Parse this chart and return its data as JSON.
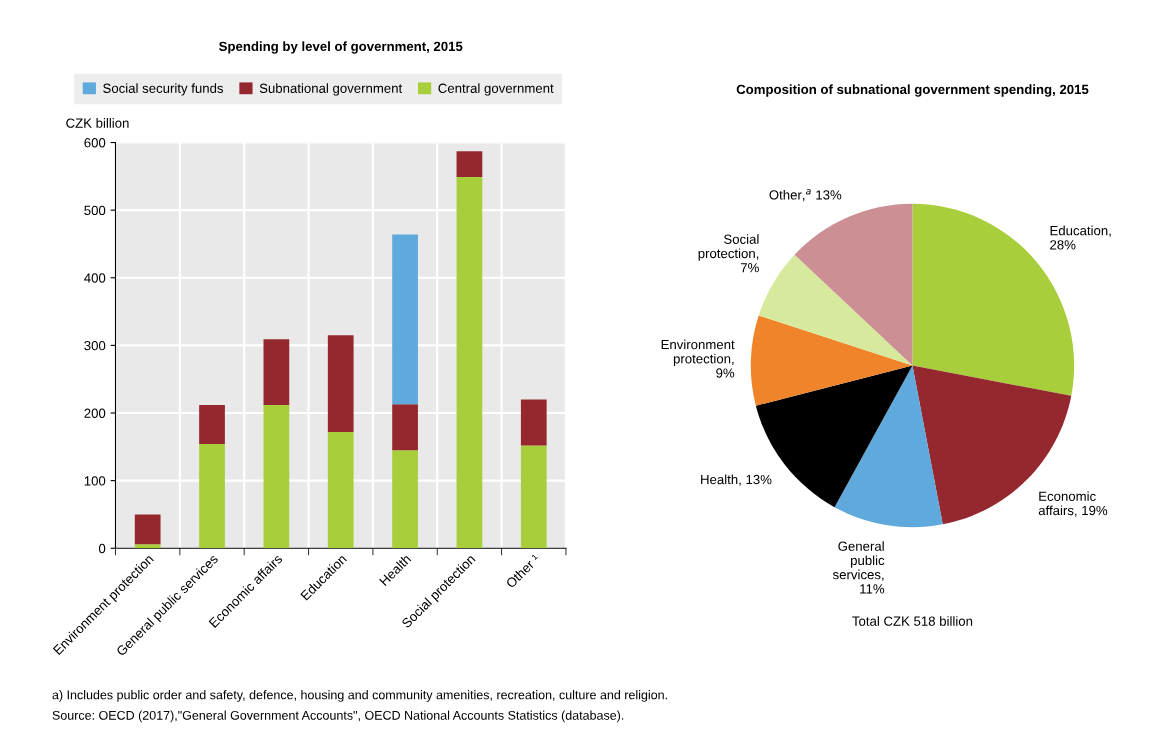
{
  "chart_data": [
    {
      "type": "bar",
      "title": "Spending by level of government, 2015",
      "ylabel": "CZK billion",
      "categories": [
        "Environment protection",
        "General public services",
        "Economic affairs",
        "Education",
        "Health",
        "Social protection",
        "Other ¹"
      ],
      "stacked": true,
      "series": [
        {
          "name": "Central government",
          "color": "#a8ce3b",
          "values": [
            6,
            154,
            212,
            172,
            145,
            549,
            152
          ]
        },
        {
          "name": "Subnational government",
          "color": "#95282e",
          "values": [
            44,
            58,
            97,
            143,
            68,
            38,
            68
          ]
        },
        {
          "name": "Social security funds",
          "color": "#5fa9dd",
          "values": [
            null,
            null,
            null,
            null,
            251,
            null,
            null
          ]
        }
      ],
      "ylim": [
        0,
        600
      ],
      "yticks": [
        0,
        100,
        200,
        300,
        400,
        500,
        600
      ],
      "grid": true,
      "legend": "top"
    },
    {
      "type": "pie",
      "title": "Composition of subnational government spending, 2015",
      "categories": [
        "Education,\n28%",
        "Economic\naffairs, 19%",
        "General\npublic\nservices,\n11%",
        "Health, 13%",
        "Environment\nprotection,\n9%",
        "Social\nprotection,\n7%",
        "Other,$^{a}$ 13%"
      ],
      "values": [
        28,
        19,
        11,
        13,
        9,
        7,
        13
      ],
      "colors": [
        "#a8ce3b",
        "#95282e",
        "#5fa9dd",
        "#000000",
        "#f0842a",
        "#d6e99c",
        "#cc8f93"
      ],
      "annotations": [
        "Total CZK 518 billion",
        "a) Includes public order and safety, defence, housing and community amenities, recreation, culture and religion.",
        "Source: OECD (2017),\"General Government Accounts\", OECD National Accounts Statistics (database)."
      ]
    }
  ]
}
